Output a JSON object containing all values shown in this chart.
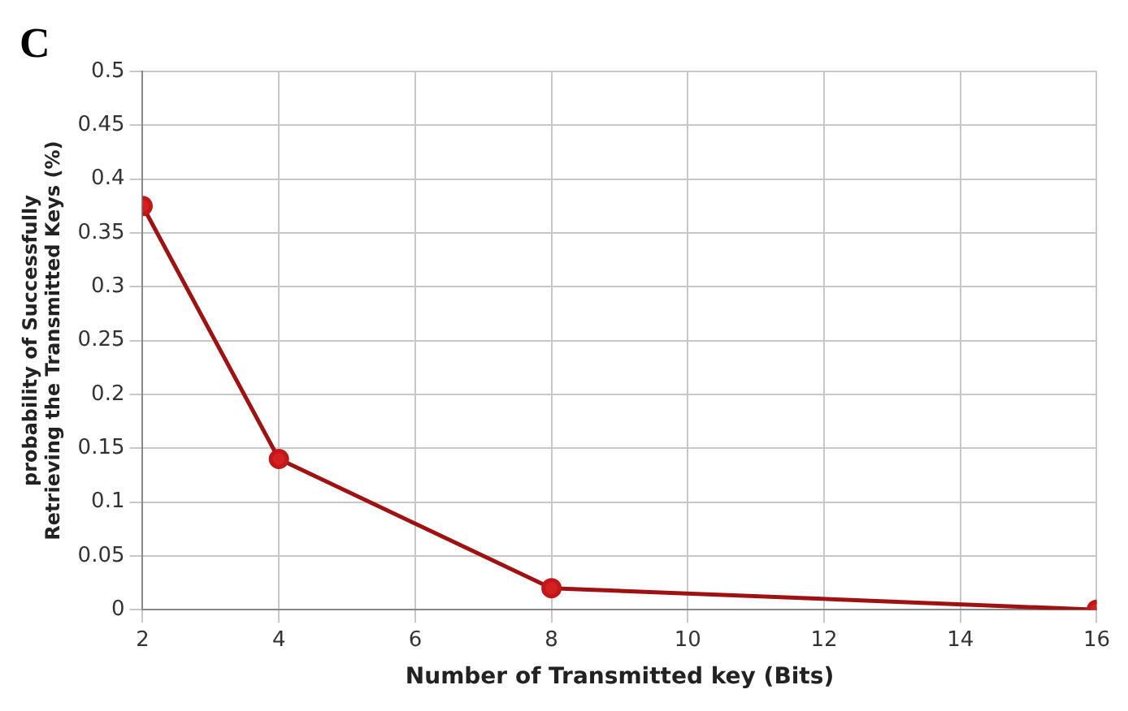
{
  "chart_data": {
    "type": "line",
    "annotations": [
      "C"
    ],
    "xlabel": "Number of Transmitted key (Bits)",
    "ylabel": "probability of Successfully Retrieving the Transmitted Keys (%)",
    "x": [
      2,
      4,
      8,
      16
    ],
    "series": [
      {
        "color": "#a01212",
        "values": [
          0.375,
          0.14,
          0.02,
          0
        ]
      }
    ],
    "xlim": [
      2,
      16
    ],
    "xticks": [
      2,
      4,
      6,
      8,
      10,
      12,
      14,
      16
    ],
    "ylim": [
      0,
      0.5
    ],
    "yticks": [
      0,
      0.05,
      0.1,
      0.15,
      0.2,
      0.25,
      0.3,
      0.35,
      0.4,
      0.45,
      0.5
    ],
    "grid": true,
    "legend": false,
    "marker": "circle",
    "line_style": "solid"
  }
}
